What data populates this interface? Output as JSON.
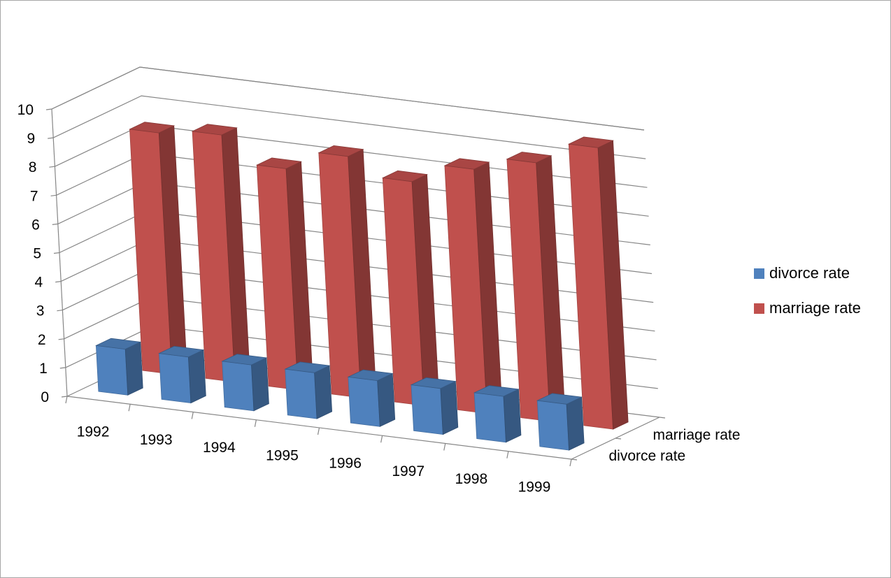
{
  "chart_data": {
    "type": "bar",
    "variant": "3d-column",
    "categories": [
      "1992",
      "1993",
      "1994",
      "1995",
      "1996",
      "1997",
      "1998",
      "1999"
    ],
    "series": [
      {
        "name": "divorce rate",
        "values": [
          1.6,
          1.6,
          1.6,
          1.6,
          1.6,
          1.6,
          1.6,
          1.6
        ],
        "color": "#4f81bd"
      },
      {
        "name": "marriage rate",
        "values": [
          8.4,
          8.6,
          7.7,
          8.4,
          7.8,
          8.5,
          9.0,
          9.8
        ],
        "color": "#c0504d"
      }
    ],
    "title": "",
    "xlabel": "",
    "ylabel": "",
    "ylim": [
      0,
      10
    ],
    "yticks": [
      "0",
      "1",
      "2",
      "3",
      "4",
      "5",
      "6",
      "7",
      "8",
      "9",
      "10"
    ],
    "depth_labels": [
      "divorce rate",
      "marriage rate"
    ],
    "grid": true,
    "legend": "right"
  }
}
